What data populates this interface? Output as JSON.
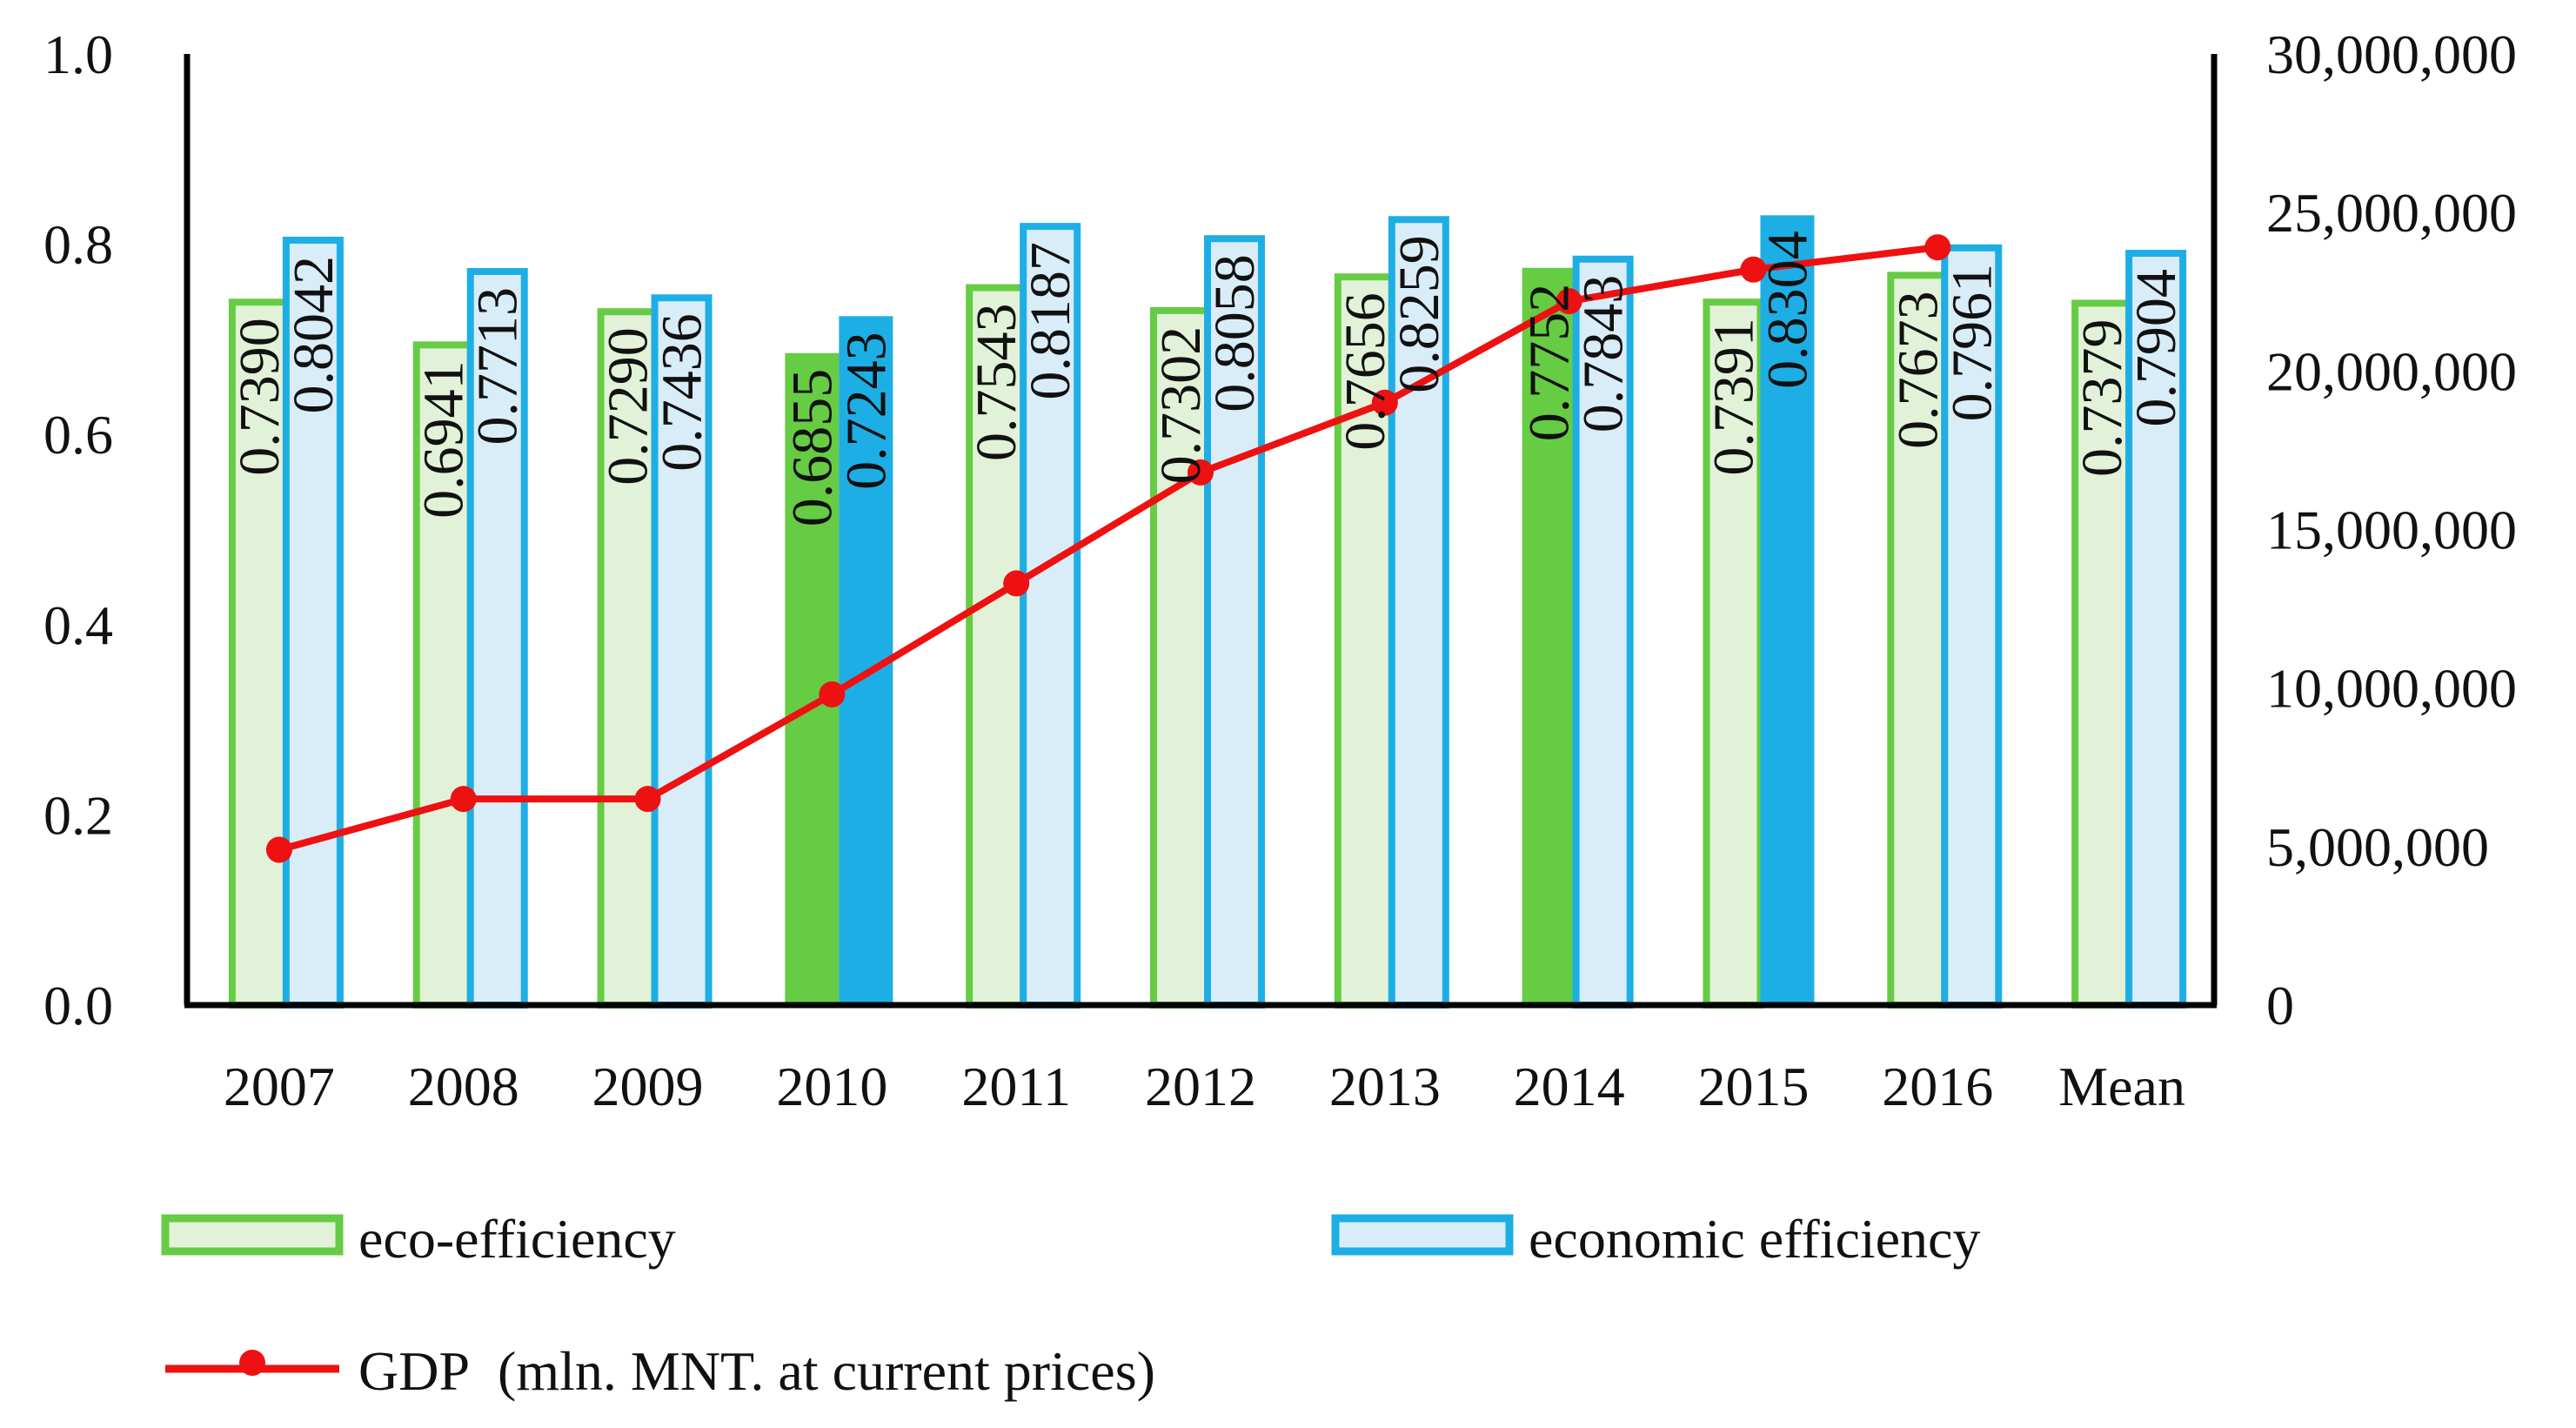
{
  "chart_data": {
    "type": "bar",
    "categories": [
      "2007",
      "2008",
      "2009",
      "2010",
      "2011",
      "2012",
      "2013",
      "2014",
      "2015",
      "2016",
      "Mean"
    ],
    "series": [
      {
        "name": "eco-efficiency",
        "axis": "left",
        "values": [
          0.739,
          0.6941,
          0.729,
          0.6855,
          0.7543,
          0.7302,
          0.7656,
          0.7752,
          0.7391,
          0.7673,
          0.7379
        ],
        "labels": [
          "0.7390",
          "0.6941",
          "0.7290",
          "0.6855",
          "0.7543",
          "0.7302",
          "0.7656",
          "0.7752",
          "0.7391",
          "0.7673",
          "0.7379"
        ],
        "highlighted": [
          false,
          false,
          false,
          true,
          false,
          false,
          false,
          true,
          false,
          false,
          false
        ],
        "color": "#66cc44",
        "fill": "#e2f2d8"
      },
      {
        "name": "economic efficiency",
        "axis": "left",
        "values": [
          0.8042,
          0.7713,
          0.7436,
          0.7243,
          0.8187,
          0.8058,
          0.8259,
          0.7843,
          0.8304,
          0.7961,
          0.7904
        ],
        "labels": [
          "0.8042",
          "0.7713",
          "0.7436",
          "0.7243",
          "0.8187",
          "0.8058",
          "0.8259",
          "0.7843",
          "0.8304",
          "0.7961",
          "0.7904"
        ],
        "highlighted": [
          false,
          false,
          false,
          true,
          false,
          false,
          false,
          false,
          true,
          false,
          false
        ],
        "color": "#1eaee6",
        "fill": "#d9edf8"
      },
      {
        "name": "GDP (mln. MNT. at current prices)",
        "type": "line",
        "axis": "right",
        "x": [
          "2007",
          "2008",
          "2009",
          "2010",
          "2011",
          "2012",
          "2013",
          "2014",
          "2015",
          "2016"
        ],
        "values": [
          4900000,
          6500000,
          6500000,
          9800000,
          13300000,
          16800000,
          19000000,
          22200000,
          23200000,
          23900000
        ],
        "color": "#ee1111"
      }
    ],
    "y_left": {
      "lim": [
        0,
        1.0
      ],
      "ticks": [
        "0.0",
        "0.2",
        "0.4",
        "0.6",
        "0.8",
        "1.0"
      ]
    },
    "y_right": {
      "lim": [
        0,
        30000000
      ],
      "ticks": [
        "0",
        "5,000,000",
        "10,000,000",
        "15,000,000",
        "20,000,000",
        "25,000,000",
        "30,000,000"
      ]
    },
    "title": "",
    "xlabel": "",
    "ylabel": "",
    "grid": false,
    "legend": {
      "position": "bottom",
      "entries": [
        "eco-efficiency",
        "economic efficiency",
        "GDP  (mln. MNT. at current prices)"
      ]
    }
  }
}
